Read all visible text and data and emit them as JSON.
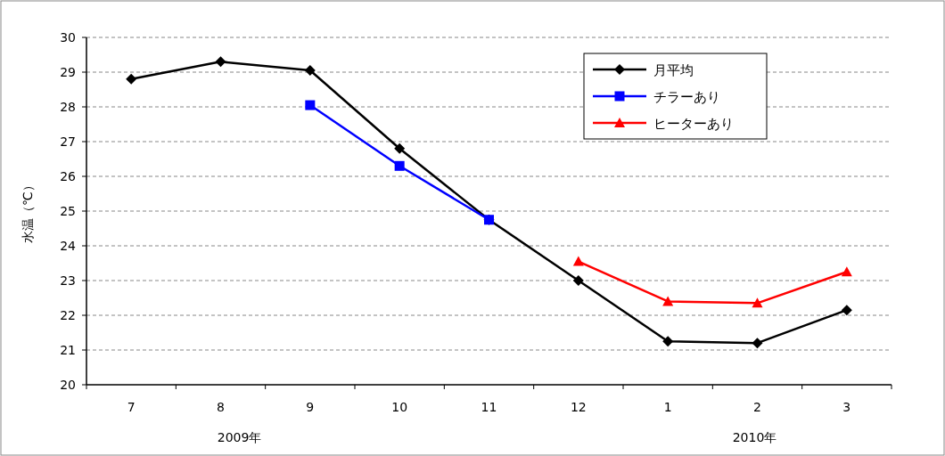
{
  "chart_data": {
    "type": "line",
    "ylabel": "水温（℃）",
    "categories": [
      "7",
      "8",
      "9",
      "10",
      "11",
      "12",
      "1",
      "2",
      "3"
    ],
    "ylim": [
      20,
      30
    ],
    "yticks": [
      20,
      21,
      22,
      23,
      24,
      25,
      26,
      27,
      28,
      29,
      30
    ],
    "grid": "y",
    "legend": "top right",
    "line_style": "solid",
    "series": [
      {
        "name": "月平均",
        "color": "#000000",
        "marker": "diamond",
        "values": [
          28.8,
          29.3,
          29.05,
          26.8,
          24.75,
          23.0,
          21.25,
          21.2,
          22.15
        ]
      },
      {
        "name": "チラーあり",
        "color": "#0000ff",
        "marker": "square",
        "values": [
          null,
          null,
          28.05,
          26.3,
          24.75,
          null,
          null,
          null,
          null
        ]
      },
      {
        "name": "ヒーターあり",
        "color": "#ff0000",
        "marker": "triangle",
        "values": [
          null,
          null,
          null,
          null,
          null,
          23.55,
          22.4,
          22.35,
          23.25
        ]
      }
    ],
    "annotations": [
      "2009年",
      "2010年"
    ]
  }
}
